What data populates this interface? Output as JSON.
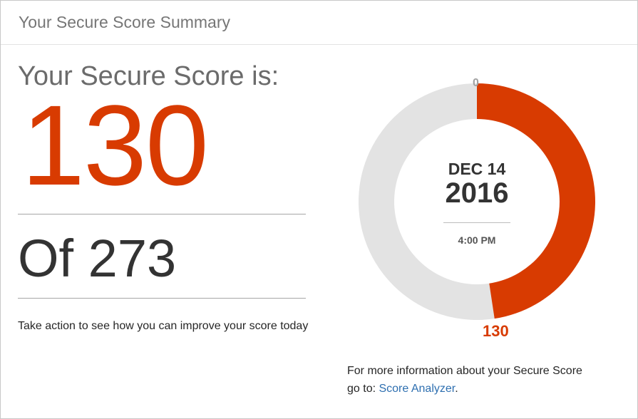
{
  "header": {
    "title": "Your Secure Score Summary"
  },
  "summary": {
    "score_label": "Your Secure Score is:",
    "score": "130",
    "of_total": "Of 273",
    "action_text": "Take action to see how you can improve your score today"
  },
  "chart_data": {
    "type": "pie",
    "variant": "donut",
    "value": 130,
    "max": 273,
    "min_label": "0",
    "value_label": "130",
    "center": {
      "date": "DEC 14",
      "year": "2016",
      "time": "4:00 PM"
    },
    "colors": {
      "value": "#d83b01",
      "remaining": "#e3e3e3"
    }
  },
  "info": {
    "line1": "For more information about your Secure Score",
    "line2_prefix": "go to: ",
    "link": "Score Analyzer",
    "suffix": "."
  }
}
